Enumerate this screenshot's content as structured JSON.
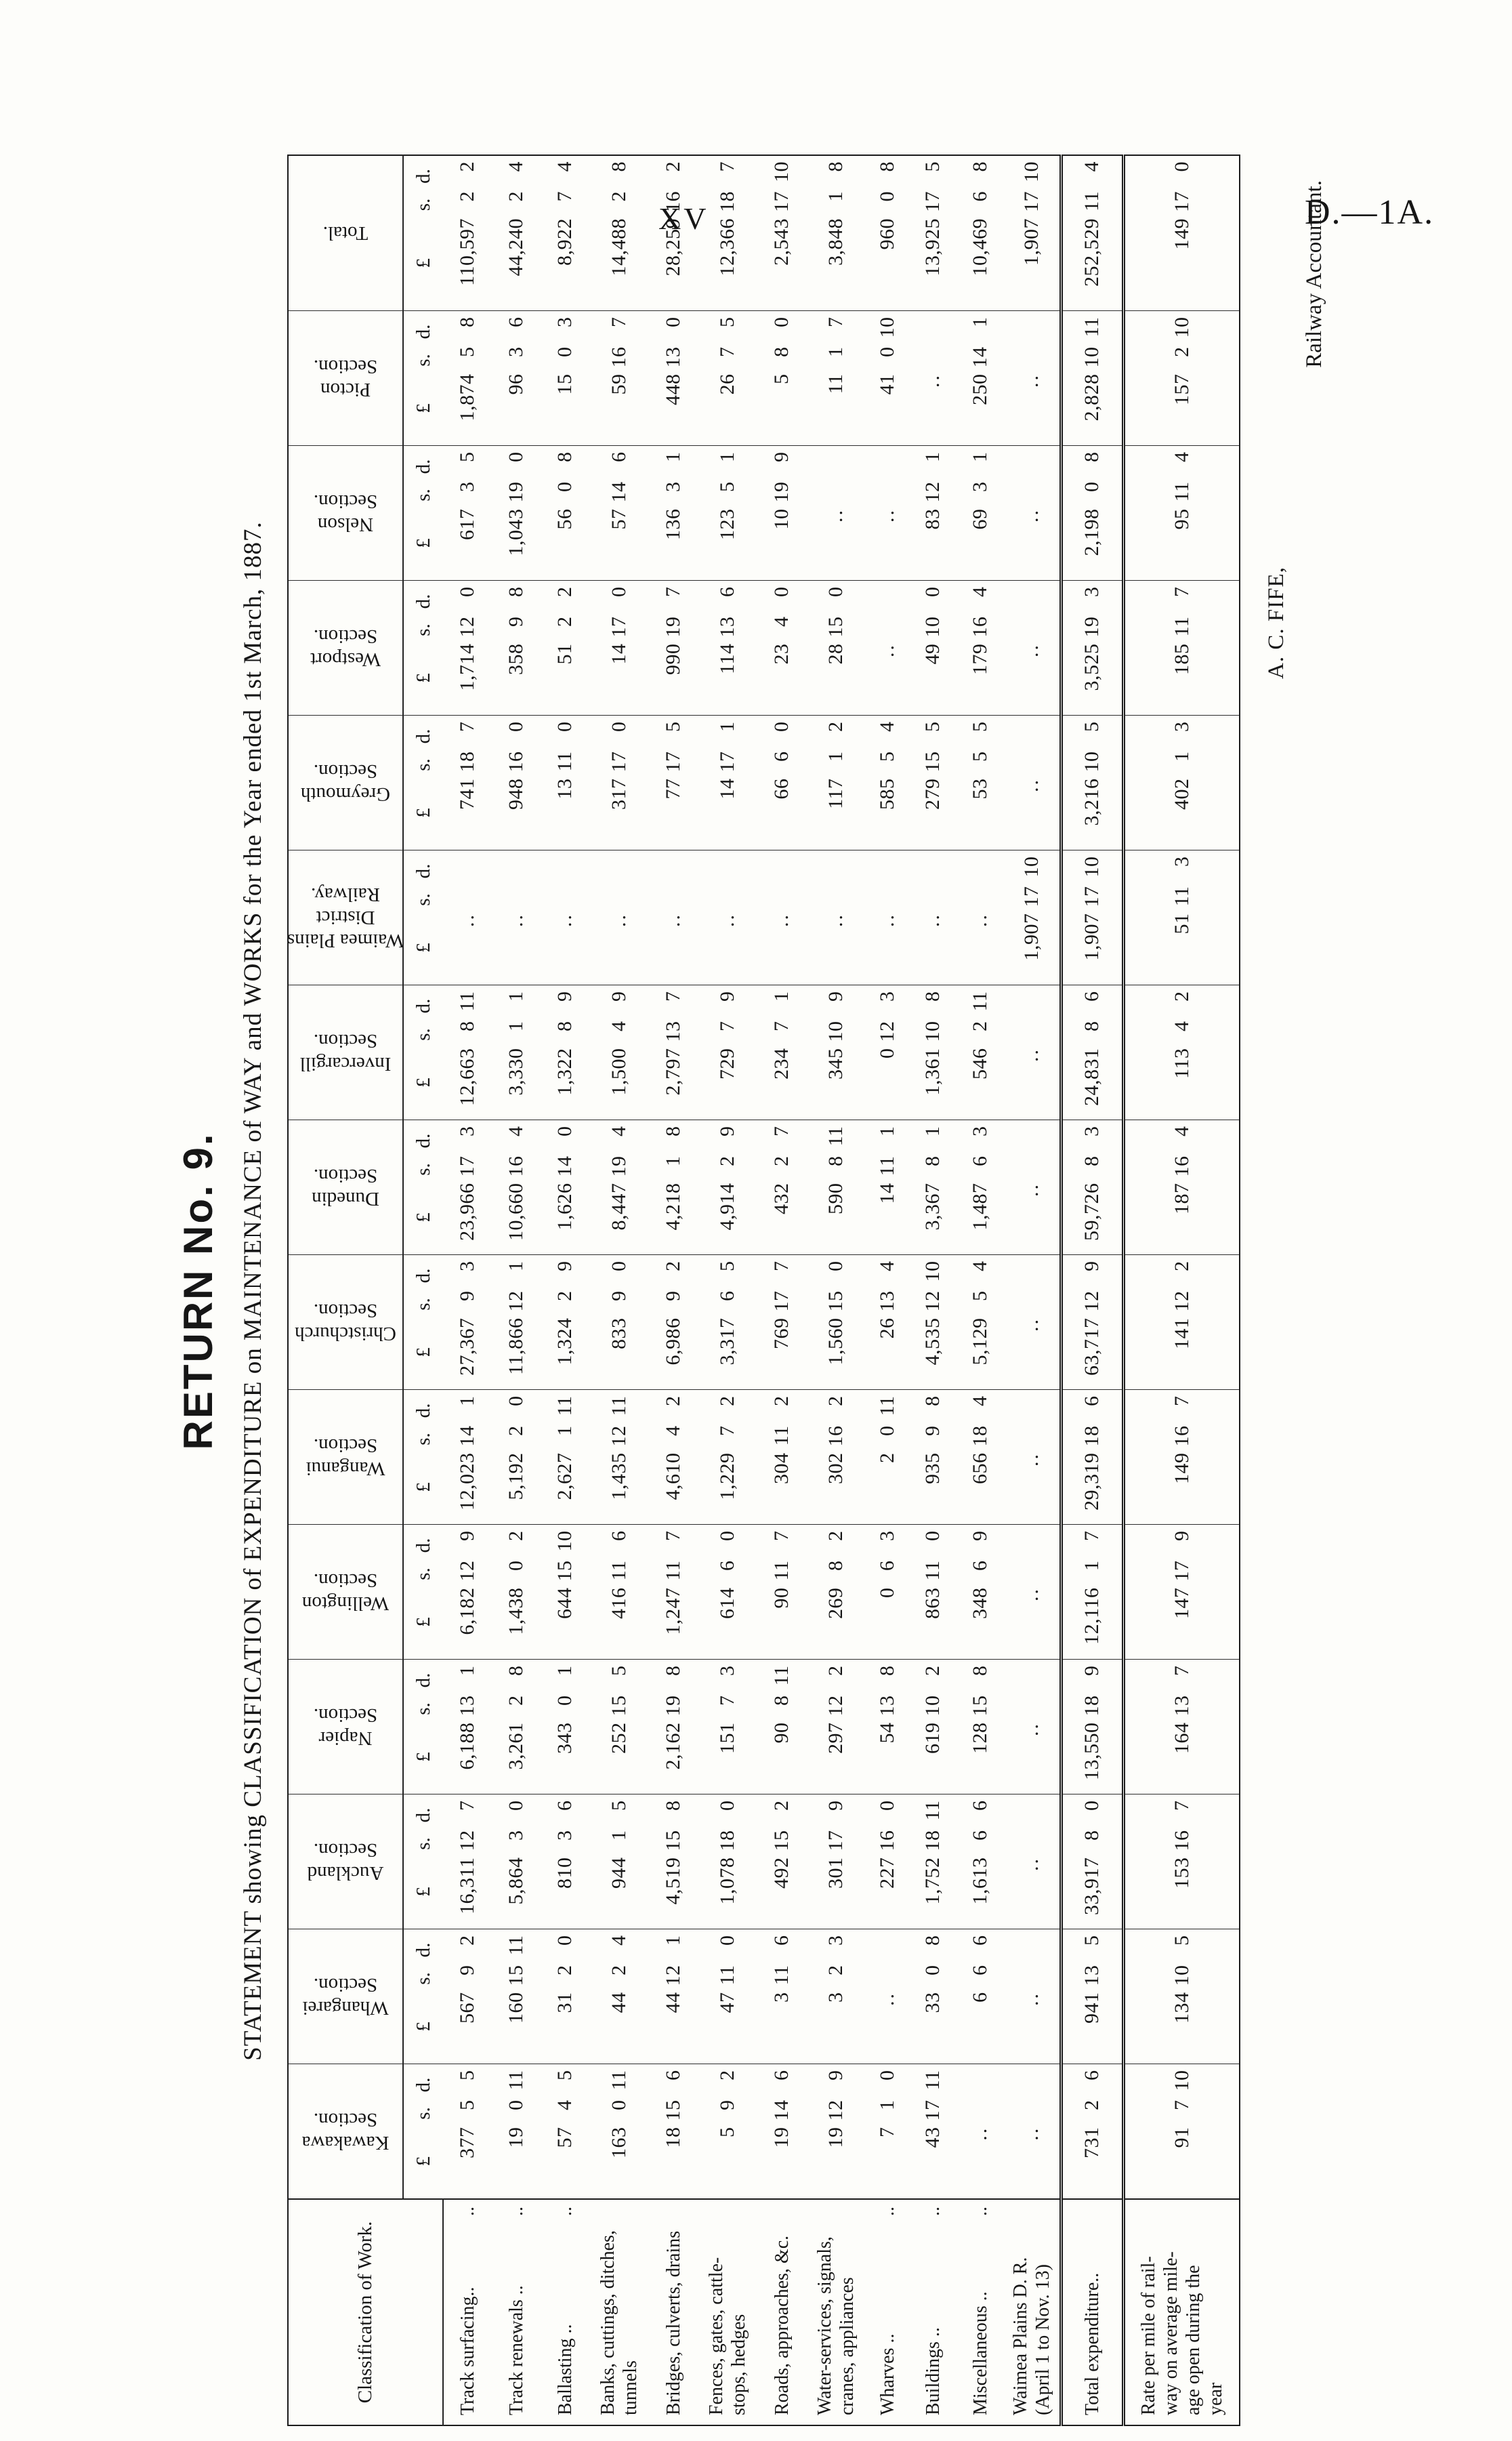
{
  "page": {
    "page_number": "XV",
    "paper_ref": "D.—1A."
  },
  "title": {
    "return_no": "RETURN No. 9.",
    "statement": "STATEMENT showing CLASSIFICATION of EXPENDITURE on MAINTENANCE of WAY and WORKS for the Year ended 1st March, 1887."
  },
  "signature": {
    "name": "A. C. FIFE,",
    "role": "Railway Accountant."
  },
  "table": {
    "classification_header": "Classification of Work.",
    "money_units": [
      "£",
      "s.",
      "d."
    ],
    "empty_mark": "..",
    "sections": [
      {
        "name_lines": [
          "Kawakawa",
          "Section."
        ]
      },
      {
        "name_lines": [
          "Whangarei",
          "Section."
        ]
      },
      {
        "name_lines": [
          "Auckland",
          "Section."
        ]
      },
      {
        "name_lines": [
          "Napier",
          "Section."
        ]
      },
      {
        "name_lines": [
          "Wellington",
          "Section."
        ]
      },
      {
        "name_lines": [
          "Wanganui",
          "Section."
        ]
      },
      {
        "name_lines": [
          "Christchurch",
          "Section."
        ]
      },
      {
        "name_lines": [
          "Dunedin",
          "Section."
        ]
      },
      {
        "name_lines": [
          "Invercargill",
          "Section."
        ]
      },
      {
        "name_lines": [
          "Waimea Plains",
          "District",
          "Railway."
        ]
      },
      {
        "name_lines": [
          "Greymouth",
          "Section."
        ]
      },
      {
        "name_lines": [
          "Westport",
          "Section."
        ]
      },
      {
        "name_lines": [
          "Nelson",
          "Section."
        ]
      },
      {
        "name_lines": [
          "Picton",
          "Section."
        ]
      },
      {
        "name_lines": [
          "Total."
        ]
      }
    ],
    "rows": [
      {
        "label_lines": [
          "Track surfacing.."
        ],
        "leaders": true,
        "values": [
          "377 5 5",
          "567 9 2",
          "16,311 12 7",
          "6,188 13 1",
          "6,182 12 9",
          "12,023 14 1",
          "27,367 9 3",
          "23,966 17 3",
          "12,663 8 11",
          "..",
          "741 18 7",
          "1,714 12 0",
          "617 3 5",
          "1,874 5 8",
          "110,597 2 2"
        ]
      },
      {
        "label_lines": [
          "Track renewals .."
        ],
        "leaders": true,
        "values": [
          "19 0 11",
          "160 15 11",
          "5,864 3 0",
          "3,261 2 8",
          "1,438 0 2",
          "5,192 2 0",
          "11,866 12 1",
          "10,660 16 4",
          "3,330 1 1",
          "..",
          "948 16 0",
          "358 9 8",
          "1,043 19 0",
          "96 3 6",
          "44,240 2 4"
        ]
      },
      {
        "label_lines": [
          "Ballasting .."
        ],
        "leaders": true,
        "values": [
          "57 4 5",
          "31 2 0",
          "810 3 6",
          "343 0 1",
          "644 15 10",
          "2,627 1 11",
          "1,324 2 9",
          "1,626 14 0",
          "1,322 8 9",
          "..",
          "13 11 0",
          "51 2 2",
          "56 0 8",
          "15 0 3",
          "8,922 7 4"
        ]
      },
      {
        "label_lines": [
          "Banks, cuttings, ditches,",
          "tunnels"
        ],
        "leaders": false,
        "values": [
          "163 0 11",
          "44 2 4",
          "944 1 5",
          "252 15 5",
          "416 11 6",
          "1,435 12 11",
          "833 9 0",
          "8,447 19 4",
          "1,500 4 9",
          "..",
          "317 17 0",
          "14 17 0",
          "57 14 6",
          "59 16 7",
          "14,488 2 8"
        ]
      },
      {
        "label_lines": [
          "Bridges, culverts, drains"
        ],
        "leaders": false,
        "values": [
          "18 15 6",
          "44 12 1",
          "4,519 15 8",
          "2,162 19 8",
          "1,247 11 7",
          "4,610 4 2",
          "6,986 9 2",
          "4,218 1 8",
          "2,797 13 7",
          "..",
          "77 17 5",
          "990 19 7",
          "136 3 1",
          "448 13 0",
          "28,259 16 2"
        ]
      },
      {
        "label_lines": [
          "Fences, gates, cattle-",
          "stops, hedges"
        ],
        "leaders": false,
        "values": [
          "5 9 2",
          "47 11 0",
          "1,078 18 0",
          "151 7 3",
          "614 6 0",
          "1,229 7 2",
          "3,317 6 5",
          "4,914 2 9",
          "729 7 9",
          "..",
          "14 17 1",
          "114 13 6",
          "123 5 1",
          "26 7 5",
          "12,366 18 7"
        ]
      },
      {
        "label_lines": [
          "Roads, approaches, &c."
        ],
        "leaders": false,
        "values": [
          "19 14 6",
          "3 11 6",
          "492 15 2",
          "90 8 11",
          "90 11 7",
          "304 11 2",
          "769 17 7",
          "432 2 7",
          "234 7 1",
          "..",
          "66 6 0",
          "23 4 0",
          "10 19 9",
          "5 8 0",
          "2,543 17 10"
        ]
      },
      {
        "label_lines": [
          "Water-services, signals,",
          "cranes, appliances"
        ],
        "leaders": false,
        "values": [
          "19 12 9",
          "3 2 3",
          "301 17 9",
          "297 12 2",
          "269 8 2",
          "302 16 2",
          "1,560 15 0",
          "590 8 11",
          "345 10 9",
          "..",
          "117 1 2",
          "28 15 0",
          "..",
          "11 1 7",
          "3,848 1 8"
        ]
      },
      {
        "label_lines": [
          "Wharves .."
        ],
        "leaders": true,
        "values": [
          "7 1 0",
          "..",
          "227 16 0",
          "54 13 8",
          "0 6 3",
          "2 0 11",
          "26 13 4",
          "14 11 1",
          "0 12 3",
          "..",
          "585 5 4",
          "..",
          "..",
          "41 0 10",
          "960 0 8"
        ]
      },
      {
        "label_lines": [
          "Buildings .."
        ],
        "leaders": true,
        "values": [
          "43 17 11",
          "33 0 8",
          "1,752 18 11",
          "619 10 2",
          "863 11 0",
          "935 9 8",
          "4,535 12 10",
          "3,367 8 1",
          "1,361 10 8",
          "..",
          "279 15 5",
          "49 10 0",
          "83 12 1",
          "..",
          "13,925 17 5"
        ]
      },
      {
        "label_lines": [
          "Miscellaneous .."
        ],
        "leaders": true,
        "values": [
          "..",
          "6 6 6",
          "1,613 6 6",
          "128 15 8",
          "348 6 9",
          "656 18 4",
          "5,129 5 4",
          "1,487 6 3",
          "546 2 11",
          "..",
          "53 5 5",
          "179 16 4",
          "69 3 1",
          "250 14 1",
          "10,469 6 8"
        ]
      },
      {
        "label_lines": [
          "Waimea Plains D. R.",
          "(April 1 to Nov. 13)"
        ],
        "leaders": false,
        "values": [
          "..",
          "..",
          "..",
          "..",
          "..",
          "..",
          "..",
          "..",
          "..",
          "1,907 17 10",
          "..",
          "..",
          "..",
          "..",
          "1,907 17 10"
        ]
      },
      {
        "label_lines": [
          "Total expenditure.."
        ],
        "leaders": false,
        "total_row": true,
        "values": [
          "731 2 6",
          "941 13 5",
          "33,917 8 0",
          "13,550 18 9",
          "12,116 1 7",
          "29,319 18 6",
          "63,717 12 9",
          "59,726 8 3",
          "24,831 8 6",
          "1,907 17 10",
          "3,216 10 5",
          "3,525 19 3",
          "2,198 0 8",
          "2,828 10 11",
          "252,529 11 4"
        ]
      },
      {
        "label_lines": [
          "Rate per mile of rail-",
          "way on average mile-",
          "age open during the",
          "year"
        ],
        "leaders": false,
        "values": [
          "91 7 10",
          "134 10 5",
          "153 16 7",
          "164 13 7",
          "147 17 9",
          "149 16 7",
          "141 12 2",
          "187 16 4",
          "113 4 2",
          "51 11 3",
          "402 1 3",
          "185 11 7",
          "95 11 4",
          "157 2 10",
          "149 17 0"
        ]
      }
    ]
  }
}
